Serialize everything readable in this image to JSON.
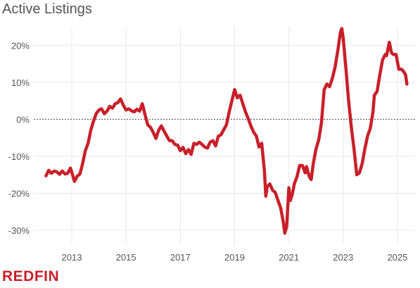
{
  "chart_data": {
    "type": "line",
    "title": "Active Listings",
    "xlabel": "",
    "ylabel": "",
    "x_tick_labels": [
      "2013",
      "2015",
      "2017",
      "2019",
      "2021",
      "2023",
      "2025"
    ],
    "x_tick_values": [
      2013,
      2015,
      2017,
      2019,
      2021,
      2023,
      2025
    ],
    "y_tick_labels": [
      "20%",
      "10%",
      "0%",
      "-10%",
      "-20%",
      "-30%"
    ],
    "y_tick_values": [
      20,
      10,
      0,
      -10,
      -20,
      -30
    ],
    "xlim": [
      2011.6,
      2025.65
    ],
    "ylim": [
      -34,
      25
    ],
    "grid": true,
    "reference_line": 0,
    "series": [
      {
        "color": "#c8202a",
        "points": [
          [
            2012.05,
            -15.3
          ],
          [
            2012.15,
            -13.8
          ],
          [
            2012.25,
            -14.6
          ],
          [
            2012.35,
            -14.0
          ],
          [
            2012.45,
            -14.2
          ],
          [
            2012.55,
            -14.9
          ],
          [
            2012.65,
            -14.0
          ],
          [
            2012.75,
            -14.8
          ],
          [
            2012.85,
            -14.6
          ],
          [
            2012.95,
            -13.2
          ],
          [
            2013.05,
            -15.5
          ],
          [
            2013.1,
            -16.8
          ],
          [
            2013.2,
            -15.4
          ],
          [
            2013.3,
            -14.8
          ],
          [
            2013.4,
            -12.0
          ],
          [
            2013.5,
            -8.5
          ],
          [
            2013.6,
            -6.5
          ],
          [
            2013.7,
            -3.0
          ],
          [
            2013.8,
            -0.5
          ],
          [
            2013.9,
            1.5
          ],
          [
            2014.0,
            2.5
          ],
          [
            2014.1,
            2.8
          ],
          [
            2014.2,
            1.5
          ],
          [
            2014.3,
            2.2
          ],
          [
            2014.4,
            3.5
          ],
          [
            2014.5,
            3.0
          ],
          [
            2014.6,
            4.2
          ],
          [
            2014.7,
            4.5
          ],
          [
            2014.8,
            5.5
          ],
          [
            2014.9,
            3.8
          ],
          [
            2015.0,
            2.5
          ],
          [
            2015.1,
            2.8
          ],
          [
            2015.2,
            2.3
          ],
          [
            2015.3,
            2.0
          ],
          [
            2015.4,
            2.7
          ],
          [
            2015.5,
            2.2
          ],
          [
            2015.6,
            4.2
          ],
          [
            2015.7,
            1.2
          ],
          [
            2015.8,
            -1.5
          ],
          [
            2015.9,
            -2.2
          ],
          [
            2016.0,
            -3.5
          ],
          [
            2016.1,
            -5.2
          ],
          [
            2016.2,
            -3.0
          ],
          [
            2016.3,
            -1.8
          ],
          [
            2016.4,
            -3.2
          ],
          [
            2016.5,
            -4.5
          ],
          [
            2016.6,
            -5.8
          ],
          [
            2016.7,
            -5.8
          ],
          [
            2016.8,
            -6.8
          ],
          [
            2016.9,
            -7.0
          ],
          [
            2017.0,
            -8.5
          ],
          [
            2017.1,
            -7.6
          ],
          [
            2017.2,
            -9.3
          ],
          [
            2017.3,
            -8.2
          ],
          [
            2017.4,
            -9.5
          ],
          [
            2017.5,
            -6.5
          ],
          [
            2017.6,
            -6.8
          ],
          [
            2017.7,
            -6.2
          ],
          [
            2017.8,
            -6.8
          ],
          [
            2017.9,
            -7.5
          ],
          [
            2018.0,
            -7.8
          ],
          [
            2018.1,
            -6.2
          ],
          [
            2018.2,
            -5.8
          ],
          [
            2018.3,
            -7.2
          ],
          [
            2018.4,
            -4.6
          ],
          [
            2018.5,
            -4.2
          ],
          [
            2018.6,
            -2.8
          ],
          [
            2018.7,
            -1.5
          ],
          [
            2018.8,
            2.0
          ],
          [
            2018.9,
            5.0
          ],
          [
            2019.0,
            8.0
          ],
          [
            2019.1,
            5.8
          ],
          [
            2019.2,
            6.5
          ],
          [
            2019.3,
            4.3
          ],
          [
            2019.4,
            2.0
          ],
          [
            2019.5,
            0.2
          ],
          [
            2019.6,
            -1.8
          ],
          [
            2019.7,
            -3.5
          ],
          [
            2019.8,
            -4.5
          ],
          [
            2019.9,
            -7.5
          ],
          [
            2020.0,
            -6.5
          ],
          [
            2020.1,
            -14.0
          ],
          [
            2020.15,
            -20.8
          ],
          [
            2020.2,
            -18.2
          ],
          [
            2020.3,
            -17.5
          ],
          [
            2020.4,
            -19.2
          ],
          [
            2020.5,
            -19.8
          ],
          [
            2020.6,
            -22.0
          ],
          [
            2020.7,
            -24.0
          ],
          [
            2020.8,
            -28.0
          ],
          [
            2020.85,
            -30.8
          ],
          [
            2020.92,
            -29.0
          ],
          [
            2021.0,
            -18.5
          ],
          [
            2021.05,
            -22.0
          ],
          [
            2021.12,
            -20.5
          ],
          [
            2021.2,
            -17.5
          ],
          [
            2021.3,
            -15.5
          ],
          [
            2021.4,
            -12.5
          ],
          [
            2021.5,
            -12.5
          ],
          [
            2021.6,
            -14.5
          ],
          [
            2021.65,
            -12.8
          ],
          [
            2021.75,
            -15.5
          ],
          [
            2021.82,
            -16.3
          ],
          [
            2021.9,
            -12.0
          ],
          [
            2022.0,
            -8.0
          ],
          [
            2022.1,
            -5.5
          ],
          [
            2022.2,
            -1.0
          ],
          [
            2022.3,
            8.0
          ],
          [
            2022.4,
            9.5
          ],
          [
            2022.5,
            8.8
          ],
          [
            2022.6,
            11.0
          ],
          [
            2022.7,
            14.0
          ],
          [
            2022.8,
            18.5
          ],
          [
            2022.9,
            23.5
          ],
          [
            2022.95,
            24.5
          ],
          [
            2023.0,
            22.0
          ],
          [
            2023.1,
            14.0
          ],
          [
            2023.2,
            5.0
          ],
          [
            2023.3,
            -2.0
          ],
          [
            2023.4,
            -8.0
          ],
          [
            2023.5,
            -15.0
          ],
          [
            2023.6,
            -14.5
          ],
          [
            2023.7,
            -12.0
          ],
          [
            2023.8,
            -8.0
          ],
          [
            2023.9,
            -4.5
          ],
          [
            2024.0,
            -2.5
          ],
          [
            2024.1,
            2.0
          ],
          [
            2024.15,
            6.5
          ],
          [
            2024.25,
            7.5
          ],
          [
            2024.35,
            12.0
          ],
          [
            2024.45,
            16.0
          ],
          [
            2024.55,
            17.5
          ],
          [
            2024.6,
            17.2
          ],
          [
            2024.7,
            20.8
          ],
          [
            2024.78,
            18.0
          ],
          [
            2024.85,
            17.5
          ],
          [
            2024.95,
            17.5
          ],
          [
            2025.05,
            13.5
          ],
          [
            2025.15,
            13.5
          ],
          [
            2025.22,
            13.0
          ],
          [
            2025.3,
            12.0
          ],
          [
            2025.35,
            9.5
          ]
        ]
      }
    ]
  },
  "brand": {
    "logo_text": "REDFIN",
    "logo_color": "#c8202a",
    "line_color": "#c8202a",
    "grid_color": "#e8e8e8",
    "zero_line_color": "#444444"
  }
}
